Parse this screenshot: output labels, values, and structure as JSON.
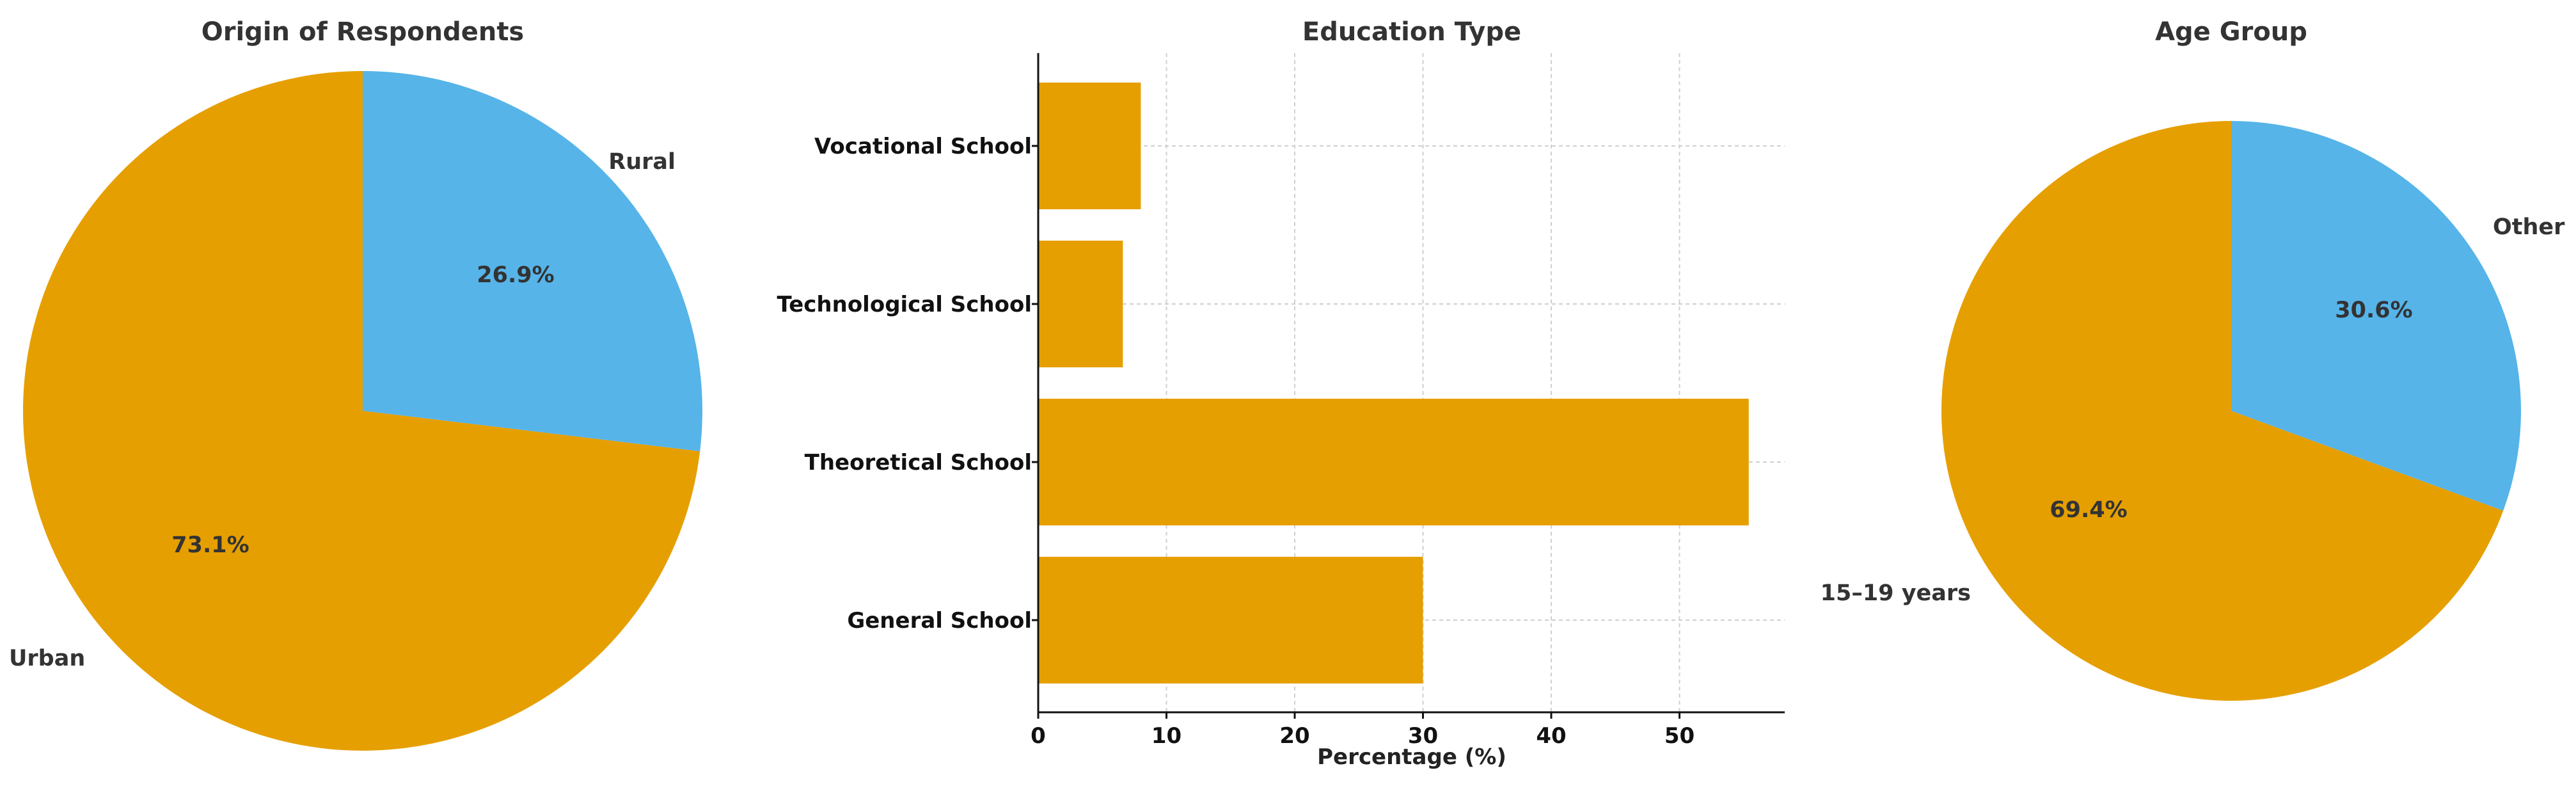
{
  "colors": {
    "primary": "#E69F00",
    "secondary": "#56B4E9"
  },
  "chart_data": [
    {
      "type": "pie",
      "title": "Origin of Respondents",
      "slices": [
        {
          "label": "Rural",
          "value": 26.9,
          "pct_label": "26.9%",
          "color": "#56B4E9"
        },
        {
          "label": "Urban",
          "value": 73.1,
          "pct_label": "73.1%",
          "color": "#E69F00"
        }
      ]
    },
    {
      "type": "bar",
      "orientation": "horizontal",
      "title": "Education Type",
      "categories": [
        "Vocational School",
        "Technological School",
        "Theoretical School",
        "General School"
      ],
      "values": [
        8,
        6.6,
        55.4,
        30
      ],
      "xlabel": "Percentage (%)",
      "ylabel": "",
      "xlim": [
        0,
        58
      ],
      "xticks": [
        "0",
        "10",
        "20",
        "30",
        "40",
        "50"
      ],
      "grid": true,
      "color": "#E69F00"
    },
    {
      "type": "pie",
      "title": "Age Group",
      "slices": [
        {
          "label": "Other",
          "value": 30.6,
          "pct_label": "30.6%",
          "color": "#56B4E9"
        },
        {
          "label": "15–19 years",
          "value": 69.4,
          "pct_label": "69.4%",
          "color": "#E69F00"
        }
      ]
    }
  ]
}
